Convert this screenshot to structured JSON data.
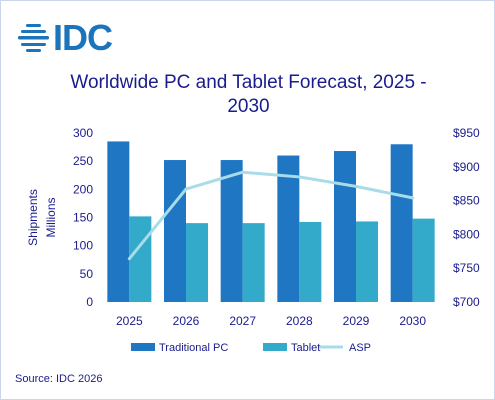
{
  "logo": {
    "text": "IDC"
  },
  "chart_data": {
    "type": "bar",
    "title": "Worldwide PC and Tablet Forecast, 2025 - 2030",
    "categories": [
      "2025",
      "2026",
      "2027",
      "2028",
      "2029",
      "2030"
    ],
    "series": [
      {
        "name": "Traditional PC",
        "type": "bar",
        "axis": "left",
        "color": "#1f77c4",
        "values": [
          285,
          252,
          252,
          260,
          268,
          280
        ]
      },
      {
        "name": "Tablet",
        "type": "bar",
        "axis": "left",
        "color": "#33aac9",
        "values": [
          152,
          140,
          140,
          142,
          143,
          148
        ]
      },
      {
        "name": "ASP",
        "type": "line",
        "axis": "right",
        "color": "#a8dce9",
        "values": [
          764,
          867,
          892,
          885,
          871,
          854
        ]
      }
    ],
    "ylabel_lines": [
      "Shipments",
      "Millions"
    ],
    "y_left": {
      "min": 0,
      "max": 300,
      "step": 50,
      "ticks": [
        "0",
        "50",
        "100",
        "150",
        "200",
        "250",
        "300"
      ]
    },
    "y_right": {
      "min": 700,
      "max": 950,
      "step": 50,
      "ticks": [
        "$700",
        "$750",
        "$800",
        "$850",
        "$900",
        "$950"
      ]
    },
    "legend": {
      "position": "bottom"
    },
    "grid": false
  },
  "source": "Source: IDC 2026"
}
